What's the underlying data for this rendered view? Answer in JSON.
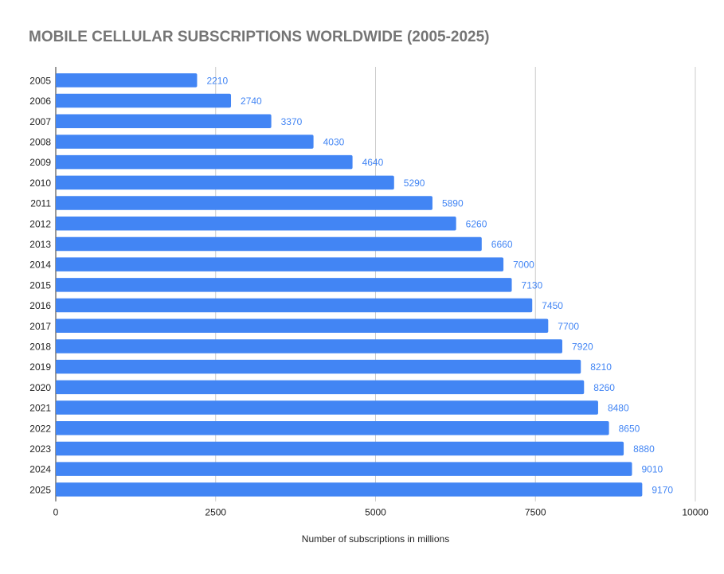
{
  "chart_data": {
    "type": "bar",
    "orientation": "horizontal",
    "title": "MOBILE CELLULAR SUBSCRIPTIONS WORLDWIDE (2005-2025)",
    "xlabel": "Number of subscriptions in millions",
    "ylabel": "",
    "categories": [
      "2005",
      "2006",
      "2007",
      "2008",
      "2009",
      "2010",
      "2011",
      "2012",
      "2013",
      "2014",
      "2015",
      "2016",
      "2017",
      "2018",
      "2019",
      "2020",
      "2021",
      "2022",
      "2023",
      "2024",
      "2025"
    ],
    "values": [
      2210,
      2740,
      3370,
      4030,
      4640,
      5290,
      5890,
      6260,
      6660,
      7000,
      7130,
      7450,
      7700,
      7920,
      8210,
      8260,
      8480,
      8650,
      8880,
      9010,
      9170
    ],
    "xlim": [
      0,
      10000
    ],
    "xticks": [
      0,
      2500,
      5000,
      7500,
      10000
    ],
    "grid": "vertical",
    "legend": "none",
    "data_labels": true,
    "colors": {
      "bar": "#4285f4",
      "data_label": "#4285f4",
      "title": "#757575",
      "grid": "#cccccc",
      "tick_label": "#222222"
    }
  }
}
